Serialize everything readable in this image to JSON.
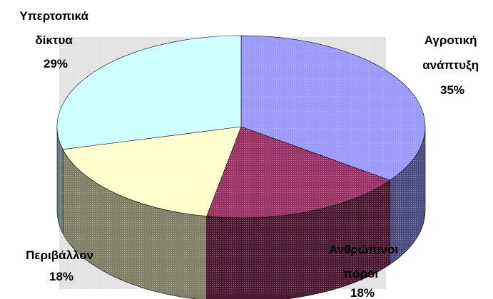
{
  "chart_data": {
    "type": "pie",
    "title": "",
    "legend": "none",
    "slices": [
      {
        "label_lines": [
          "Αγροτική",
          "ανάπτυξη"
        ],
        "value_text": "35%",
        "value": 35,
        "color": "#9999ff",
        "side_color": "#4c4c80"
      },
      {
        "label_lines": [
          "Ανθρώπινοι",
          "πόροι"
        ],
        "value_text": "18%",
        "value": 18,
        "color": "#993366",
        "side_color": "#4c1a33"
      },
      {
        "label_lines": [
          "Περιβάλλον"
        ],
        "value_text": "18%",
        "value": 18,
        "color": "#ffffcc",
        "side_color": "#808066"
      },
      {
        "label_lines": [
          "Υπερτοπικά",
          "δίκτυα"
        ],
        "value_text": "29%",
        "value": 29,
        "color": "#ccffff",
        "side_color": "#668080"
      }
    ]
  }
}
